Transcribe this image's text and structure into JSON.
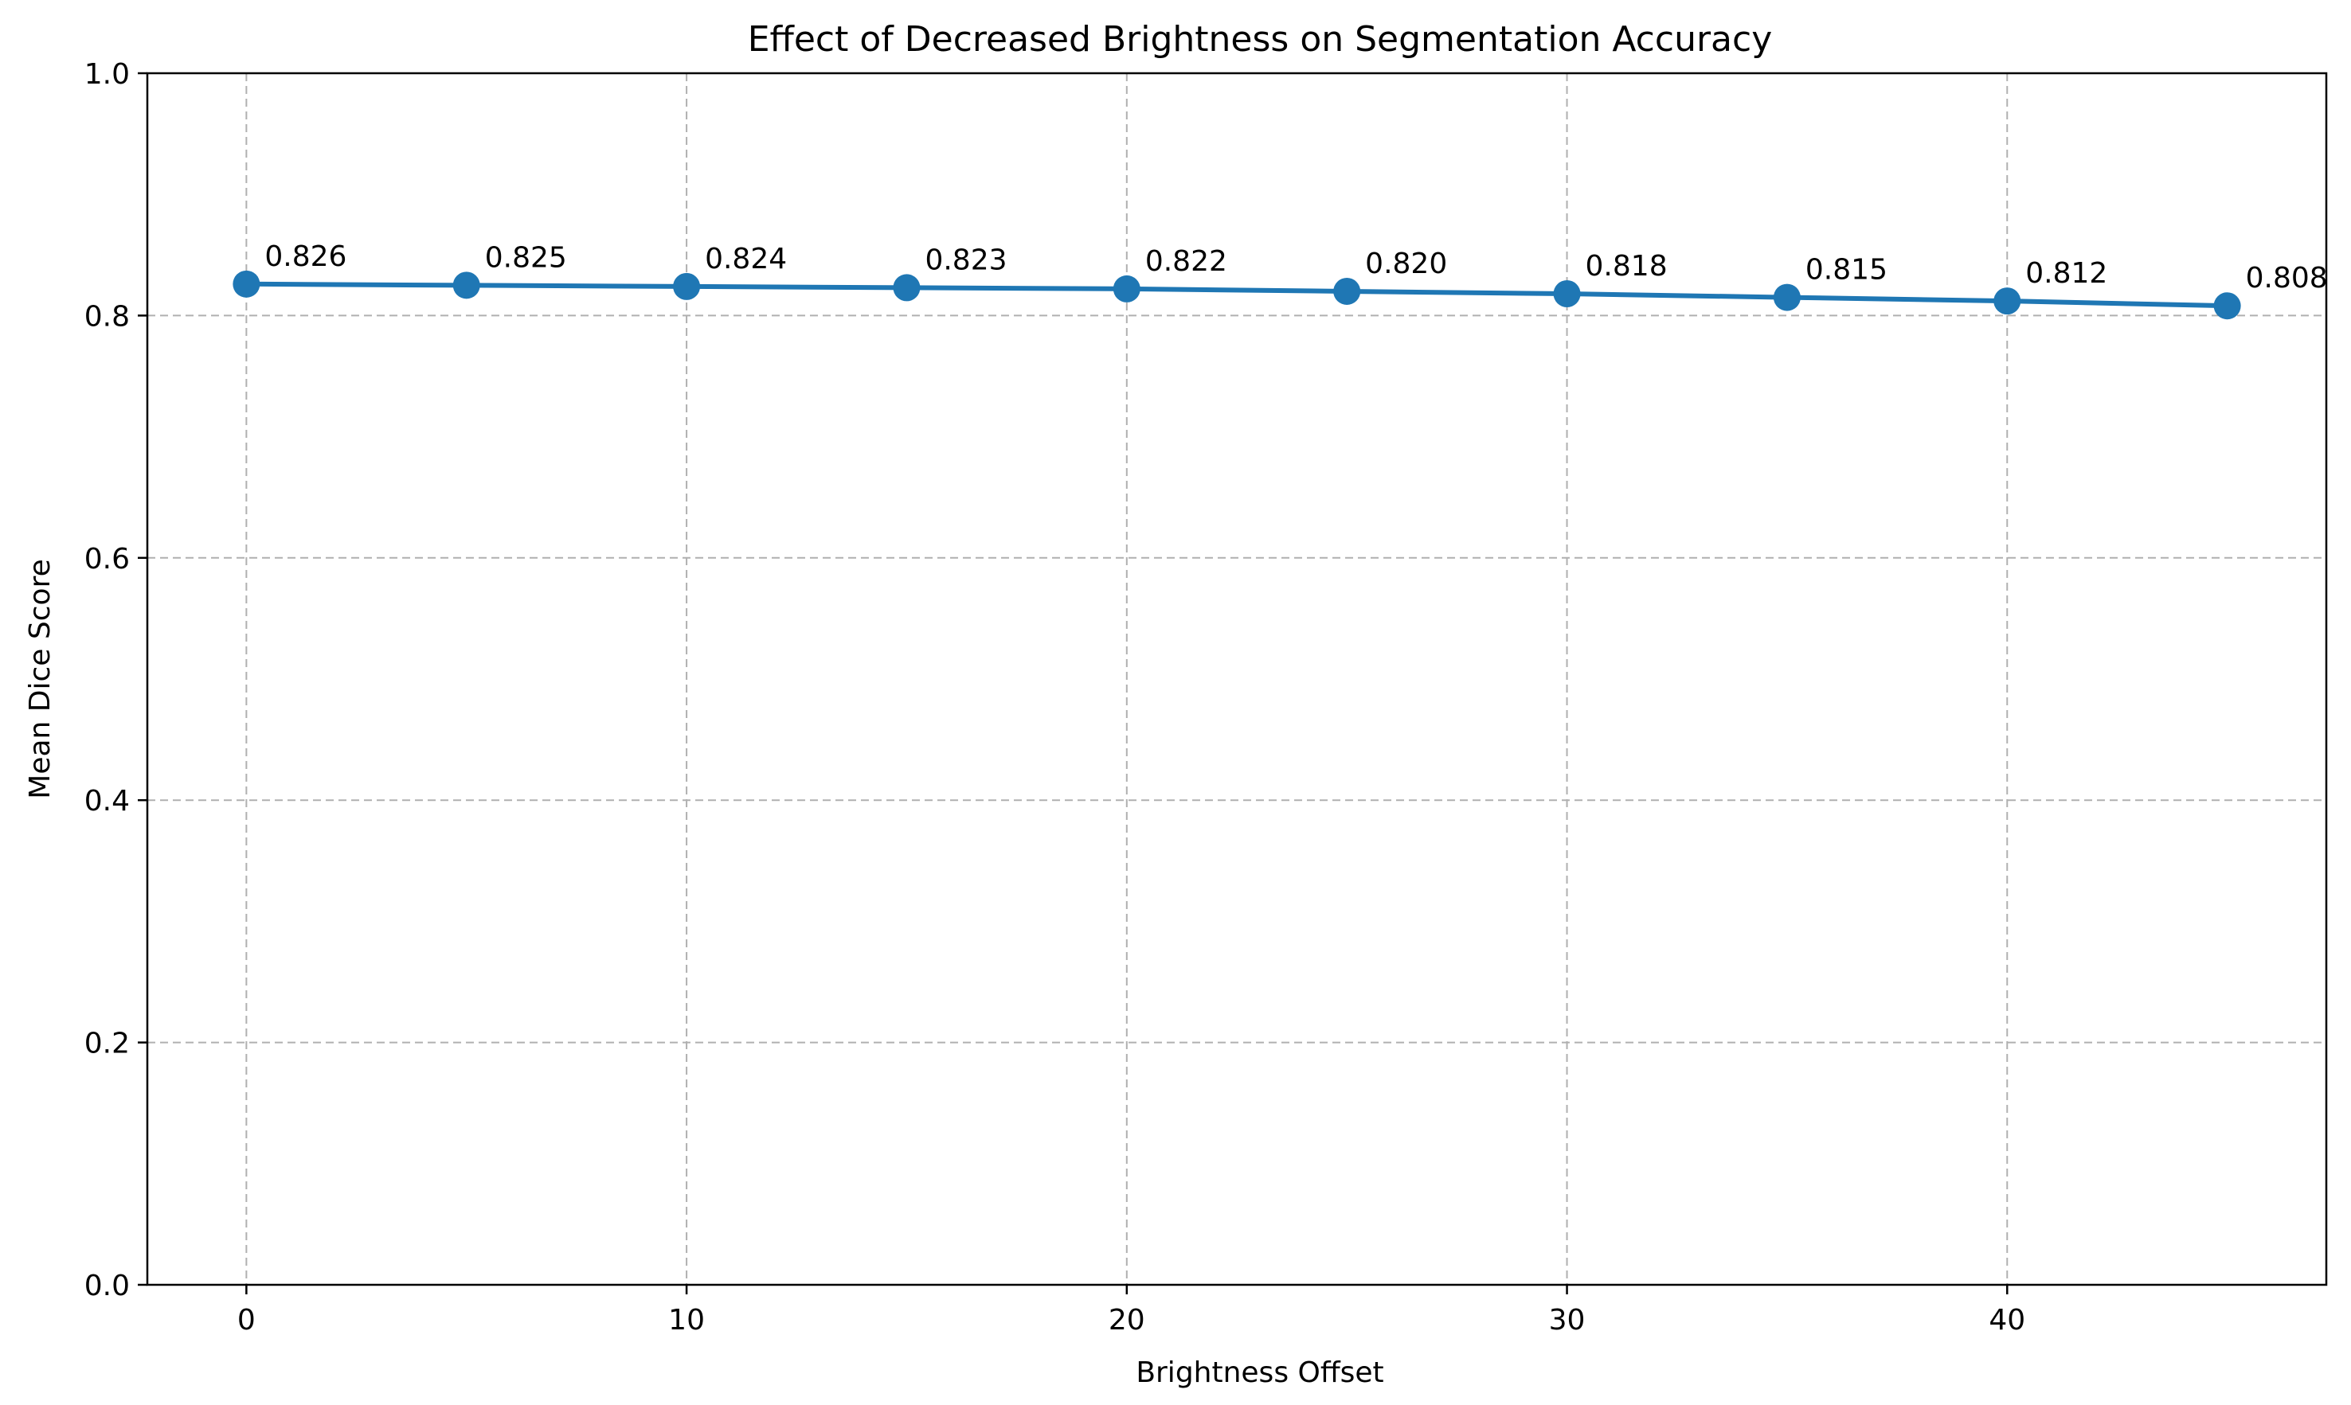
{
  "chart_data": {
    "type": "line",
    "title": "Effect of Decreased Brightness on Segmentation Accuracy",
    "xlabel": "Brightness Offset",
    "ylabel": "Mean Dice Score",
    "x": [
      0,
      5,
      10,
      15,
      20,
      25,
      30,
      35,
      40,
      45
    ],
    "series": [
      {
        "values": [
          0.826,
          0.825,
          0.824,
          0.823,
          0.822,
          0.82,
          0.818,
          0.815,
          0.812,
          0.808
        ],
        "data_labels": [
          "0.826",
          "0.825",
          "0.824",
          "0.823",
          "0.822",
          "0.820",
          "0.818",
          "0.815",
          "0.812",
          "0.808"
        ],
        "color": "#1f77b4",
        "marker": "circle"
      }
    ],
    "xlim": [
      -2.25,
      47.25
    ],
    "ylim": [
      0,
      1
    ],
    "xticks": [
      0,
      10,
      20,
      30,
      40
    ],
    "xtick_labels": [
      "0",
      "10",
      "20",
      "30",
      "40"
    ],
    "yticks": [
      0,
      0.2,
      0.4,
      0.6,
      0.8,
      1.0
    ],
    "ytick_labels": [
      "0.0",
      "0.2",
      "0.4",
      "0.6",
      "0.8",
      "1.0"
    ],
    "grid": true,
    "grid_style": "dashed"
  }
}
